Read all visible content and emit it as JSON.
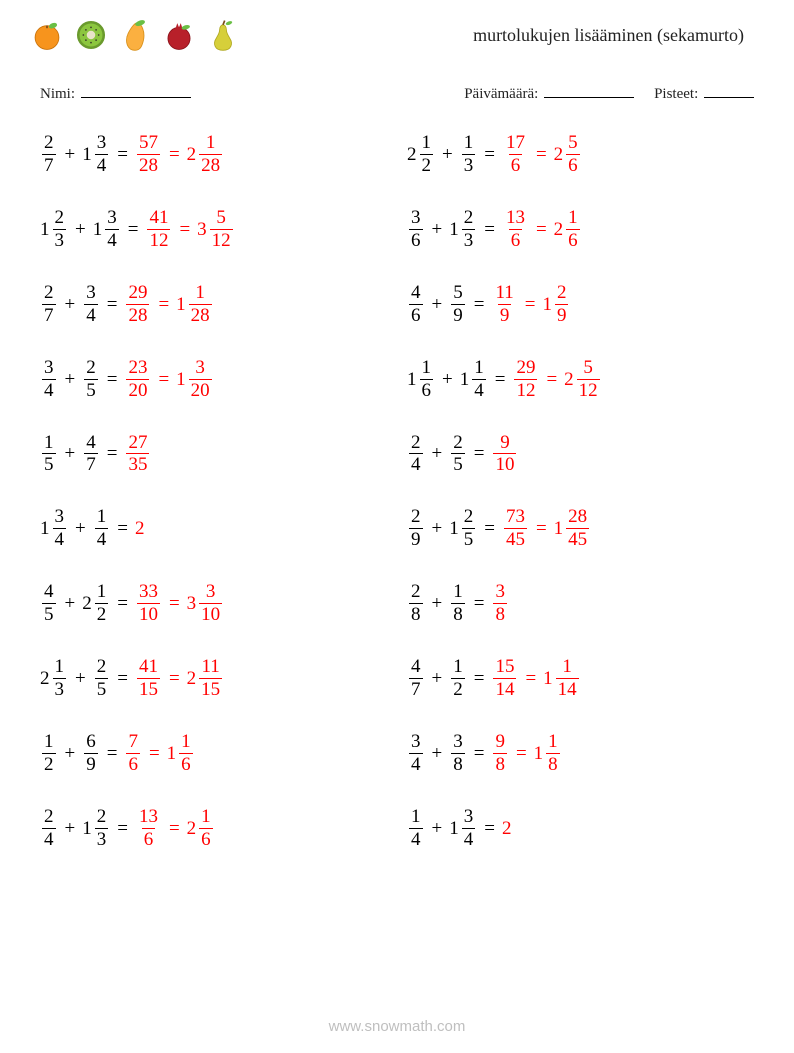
{
  "title": "murtolukujen lisääminen (sekamurto)",
  "meta": {
    "name_label": "Nimi:",
    "date_label": "Päivämäärä:",
    "score_label": "Pisteet:",
    "name_blank_width": 110,
    "date_blank_width": 90,
    "score_blank_width": 50
  },
  "colors": {
    "text": "#000000",
    "answer": "#ff0000",
    "watermark": "#bfbfbf",
    "background": "#ffffff"
  },
  "typography": {
    "title_fontsize": 18,
    "meta_fontsize": 15,
    "problem_fontsize": 19
  },
  "fruits": [
    {
      "name": "orange",
      "body": "#f7941d",
      "leaf": "#6abf45"
    },
    {
      "name": "kiwi",
      "body": "#8cc63f",
      "ring": "#6a9a2d",
      "center": "#e8e3c8"
    },
    {
      "name": "mango",
      "body": "#fbb040",
      "leaf": "#6abf45"
    },
    {
      "name": "pomegranate",
      "body": "#b8202a",
      "crown": "#b8202a",
      "leaf": "#6abf45"
    },
    {
      "name": "pear",
      "body": "#d6cf3a",
      "leaf": "#6abf45"
    }
  ],
  "problems": [
    {
      "a": {
        "n": 2,
        "d": 7
      },
      "b": {
        "w": 1,
        "n": 3,
        "d": 4
      },
      "r1": {
        "n": 57,
        "d": 28
      },
      "r2": {
        "w": 2,
        "n": 1,
        "d": 28
      }
    },
    {
      "a": {
        "w": 2,
        "n": 1,
        "d": 2
      },
      "b": {
        "n": 1,
        "d": 3
      },
      "r1": {
        "n": 17,
        "d": 6
      },
      "r2": {
        "w": 2,
        "n": 5,
        "d": 6
      }
    },
    {
      "a": {
        "w": 1,
        "n": 2,
        "d": 3
      },
      "b": {
        "w": 1,
        "n": 3,
        "d": 4
      },
      "r1": {
        "n": 41,
        "d": 12
      },
      "r2": {
        "w": 3,
        "n": 5,
        "d": 12
      }
    },
    {
      "a": {
        "n": 3,
        "d": 6
      },
      "b": {
        "w": 1,
        "n": 2,
        "d": 3
      },
      "r1": {
        "n": 13,
        "d": 6
      },
      "r2": {
        "w": 2,
        "n": 1,
        "d": 6
      }
    },
    {
      "a": {
        "n": 2,
        "d": 7
      },
      "b": {
        "n": 3,
        "d": 4
      },
      "r1": {
        "n": 29,
        "d": 28
      },
      "r2": {
        "w": 1,
        "n": 1,
        "d": 28
      }
    },
    {
      "a": {
        "n": 4,
        "d": 6
      },
      "b": {
        "n": 5,
        "d": 9
      },
      "r1": {
        "n": 11,
        "d": 9
      },
      "r2": {
        "w": 1,
        "n": 2,
        "d": 9
      }
    },
    {
      "a": {
        "n": 3,
        "d": 4
      },
      "b": {
        "n": 2,
        "d": 5
      },
      "r1": {
        "n": 23,
        "d": 20
      },
      "r2": {
        "w": 1,
        "n": 3,
        "d": 20
      }
    },
    {
      "a": {
        "w": 1,
        "n": 1,
        "d": 6
      },
      "b": {
        "w": 1,
        "n": 1,
        "d": 4
      },
      "r1": {
        "n": 29,
        "d": 12
      },
      "r2": {
        "w": 2,
        "n": 5,
        "d": 12
      }
    },
    {
      "a": {
        "n": 1,
        "d": 5
      },
      "b": {
        "n": 4,
        "d": 7
      },
      "r1": {
        "n": 27,
        "d": 35
      }
    },
    {
      "a": {
        "n": 2,
        "d": 4
      },
      "b": {
        "n": 2,
        "d": 5
      },
      "r1": {
        "n": 9,
        "d": 10
      }
    },
    {
      "a": {
        "w": 1,
        "n": 3,
        "d": 4
      },
      "b": {
        "n": 1,
        "d": 4
      },
      "r_int": 2
    },
    {
      "a": {
        "n": 2,
        "d": 9
      },
      "b": {
        "w": 1,
        "n": 2,
        "d": 5
      },
      "r1": {
        "n": 73,
        "d": 45
      },
      "r2": {
        "w": 1,
        "n": 28,
        "d": 45
      }
    },
    {
      "a": {
        "n": 4,
        "d": 5
      },
      "b": {
        "w": 2,
        "n": 1,
        "d": 2
      },
      "r1": {
        "n": 33,
        "d": 10
      },
      "r2": {
        "w": 3,
        "n": 3,
        "d": 10
      }
    },
    {
      "a": {
        "n": 2,
        "d": 8
      },
      "b": {
        "n": 1,
        "d": 8
      },
      "r1": {
        "n": 3,
        "d": 8
      }
    },
    {
      "a": {
        "w": 2,
        "n": 1,
        "d": 3
      },
      "b": {
        "n": 2,
        "d": 5
      },
      "r1": {
        "n": 41,
        "d": 15
      },
      "r2": {
        "w": 2,
        "n": 11,
        "d": 15
      }
    },
    {
      "a": {
        "n": 4,
        "d": 7
      },
      "b": {
        "n": 1,
        "d": 2
      },
      "r1": {
        "n": 15,
        "d": 14
      },
      "r2": {
        "w": 1,
        "n": 1,
        "d": 14
      }
    },
    {
      "a": {
        "n": 1,
        "d": 2
      },
      "b": {
        "n": 6,
        "d": 9
      },
      "r1": {
        "n": 7,
        "d": 6
      },
      "r2": {
        "w": 1,
        "n": 1,
        "d": 6
      }
    },
    {
      "a": {
        "n": 3,
        "d": 4
      },
      "b": {
        "n": 3,
        "d": 8
      },
      "r1": {
        "n": 9,
        "d": 8
      },
      "r2": {
        "w": 1,
        "n": 1,
        "d": 8
      }
    },
    {
      "a": {
        "n": 2,
        "d": 4
      },
      "b": {
        "w": 1,
        "n": 2,
        "d": 3
      },
      "r1": {
        "n": 13,
        "d": 6
      },
      "r2": {
        "w": 2,
        "n": 1,
        "d": 6
      }
    },
    {
      "a": {
        "n": 1,
        "d": 4
      },
      "b": {
        "w": 1,
        "n": 3,
        "d": 4
      },
      "r_int": 2
    }
  ],
  "watermark": "www.snowmath.com"
}
